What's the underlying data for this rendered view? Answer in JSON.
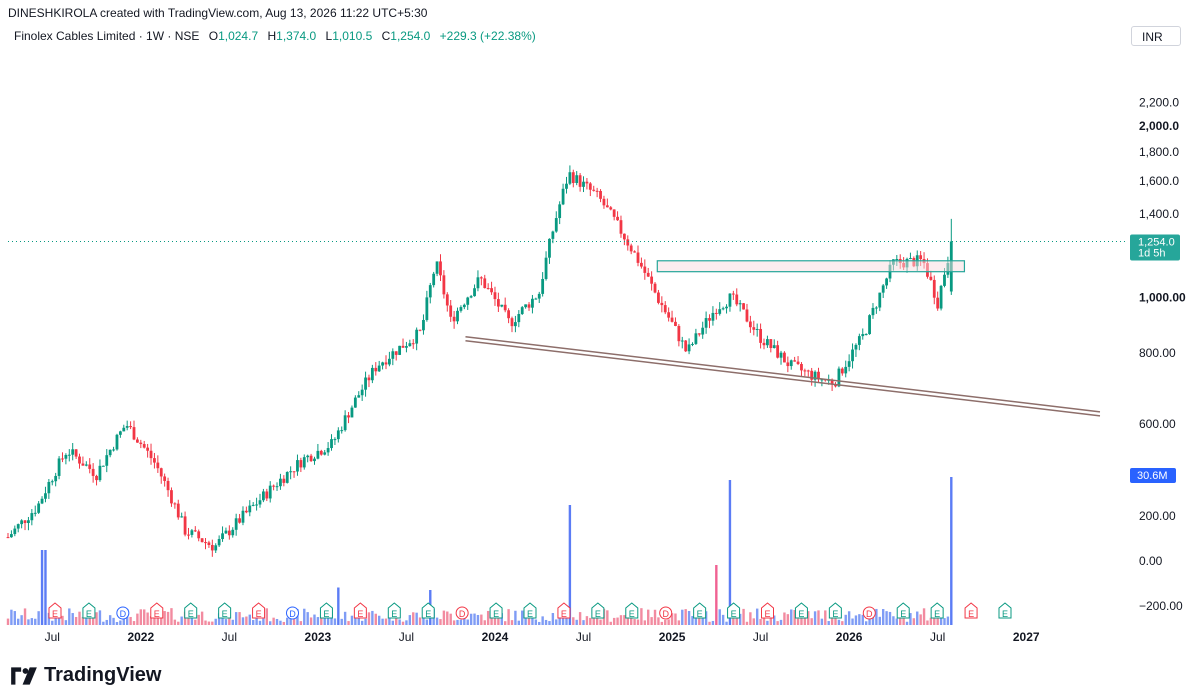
{
  "header": {
    "created_line": "DINESHKIROLA created with TradingView.com, Aug 13, 2026 11:22 UTC+5:30"
  },
  "legend": {
    "symbol": "Finolex Cables Limited · 1W · NSE",
    "open_label": "O",
    "open": "1,024.7",
    "high_label": "H",
    "high": "1,374.0",
    "low_label": "L",
    "low": "1,010.5",
    "close_label": "C",
    "close": "1,254.0",
    "change": "+229.3 (+22.38%)"
  },
  "currency": "INR",
  "price_badge": {
    "price": "1,254.0",
    "countdown": "1d 5h"
  },
  "volume_badge": "30.6M",
  "brand": "TradingView",
  "colors": {
    "up": "#089981",
    "down": "#f23645",
    "volume": "#5b7cf5",
    "badge": "#26a69a",
    "trendline": "#8d6e6a",
    "zone": "#26a69a"
  },
  "chart_data": {
    "type": "candlestick",
    "interval": "1W",
    "y_price_ticks": [
      "2,200.0",
      "2,000.0",
      "1,800.0",
      "1,600.0",
      "1,400.0",
      "1,000.00",
      "800.00",
      "600.00"
    ],
    "y_volume_ticks": [
      "200.00",
      "0.00",
      "−200.00"
    ],
    "x_ticks": [
      "Jul",
      "2022",
      "Jul",
      "2023",
      "Jul",
      "2024",
      "Jul",
      "2025",
      "Jul",
      "2026",
      "Jul",
      "2027"
    ],
    "last_close": 1254.0,
    "price_path": [
      [
        "2021-04",
        380
      ],
      [
        "2021-06",
        430
      ],
      [
        "2021-08",
        540
      ],
      [
        "2021-10",
        490
      ],
      [
        "2021-12",
        600
      ],
      [
        "2022-02",
        510
      ],
      [
        "2022-04",
        390
      ],
      [
        "2022-06",
        365
      ],
      [
        "2022-09",
        440
      ],
      [
        "2022-12",
        520
      ],
      [
        "2023-02",
        555
      ],
      [
        "2023-05",
        760
      ],
      [
        "2023-08",
        870
      ],
      [
        "2023-09",
        1150
      ],
      [
        "2023-10",
        910
      ],
      [
        "2023-12",
        1080
      ],
      [
        "2024-02",
        900
      ],
      [
        "2024-04",
        1020
      ],
      [
        "2024-06",
        1650
      ],
      [
        "2024-08",
        1500
      ],
      [
        "2024-10",
        1250
      ],
      [
        "2024-12",
        1000
      ],
      [
        "2025-02",
        800
      ],
      [
        "2025-04",
        960
      ],
      [
        "2025-05",
        1000
      ],
      [
        "2025-07",
        850
      ],
      [
        "2025-09",
        760
      ],
      [
        "2025-11",
        720
      ],
      [
        "2025-12",
        710
      ],
      [
        "2026-02",
        860
      ],
      [
        "2026-03",
        1000
      ],
      [
        "2026-04",
        1150
      ],
      [
        "2026-06",
        1160
      ],
      [
        "2026-07",
        980
      ],
      [
        "2026-08",
        1254
      ]
    ],
    "trendline": {
      "start": [
        "2023-11",
        840
      ],
      "end": [
        "2027-06",
        620
      ]
    },
    "resistance_zone": {
      "from": "2024-12",
      "to": "2026-08",
      "low": 1110,
      "high": 1160
    },
    "events": [
      "E",
      "E",
      "D",
      "E",
      "E",
      "E",
      "E",
      "D",
      "E",
      "E",
      "E",
      "E",
      "D",
      "E",
      "E",
      "E",
      "E",
      "E",
      "D",
      "E",
      "E",
      "E",
      "E",
      "E",
      "D",
      "E",
      "E",
      "E",
      "E"
    ]
  }
}
